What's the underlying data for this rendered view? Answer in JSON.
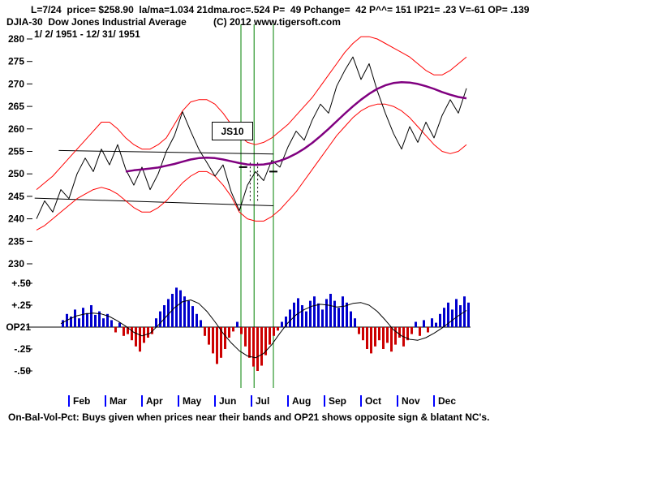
{
  "header": {
    "stats": "L=7/24  price= $258.90  la/ma=1.034 21dma.roc=.524 P=  49 Pchange=  42 P^^= 151 IP21= .23 V=-61 OP= .139",
    "title": "DJIA-30  Dow Jones Industrial Average",
    "copyright": "(C) 2012 www.tigersoft.com",
    "date_range": "1/ 2/ 1951 - 12/ 31/ 1951"
  },
  "footer_note": "On-Bal-Vol-Pct: Buys given when prices near their bands and OP21 shows opposite sign & blatant NC's.",
  "chart_data": {
    "type": "line",
    "title": "DJIA-30 Dow Jones Industrial Average",
    "date_range": "1/ 2/ 1951 - 12/ 31/ 1951",
    "x_months": [
      "Feb",
      "Mar",
      "Apr",
      "May",
      "Jun",
      "Jul",
      "Aug",
      "Sep",
      "Oct",
      "Nov",
      "Dec"
    ],
    "month_tick_color": "#0000ff",
    "price_panel": {
      "ylim": [
        229,
        281.5
      ],
      "yticks": [
        280,
        275,
        270,
        265,
        260,
        255,
        250,
        245,
        240,
        235,
        230
      ],
      "signal_vline_color": "#008000",
      "signal_vlines": [
        0.476,
        0.506,
        0.55
      ],
      "dashed_vlines": [
        {
          "x": 0.497,
          "y1": 252.5,
          "y2": 243.5
        },
        {
          "x": 0.514,
          "y1": 252.5,
          "y2": 243.5
        }
      ],
      "price_marks": [
        {
          "x": 0.481,
          "y": 251.5
        },
        {
          "x": 0.55,
          "y": 250.5
        }
      ],
      "trendlines": [
        {
          "x1": 0.06,
          "y1": 255.2,
          "x2": 0.55,
          "y2": 254.4
        },
        {
          "x1": 0.005,
          "y1": 244.6,
          "x2": 0.55,
          "y2": 242.9
        }
      ],
      "annotation": {
        "label": "JS10",
        "x": 0.41,
        "price": 259.8
      },
      "series": [
        {
          "name": "close",
          "color": "#000000",
          "width": 1,
          "values": [
            240,
            244,
            241.5,
            246.5,
            244.5,
            250,
            253.5,
            250.5,
            255.5,
            252,
            256.5,
            251,
            247.5,
            251.5,
            246.5,
            250,
            255,
            258.5,
            263.8,
            259.5,
            255.5,
            252.5,
            249.5,
            252,
            246,
            241.8,
            247.5,
            250.5,
            248.5,
            253,
            251.5,
            256,
            259.5,
            257.5,
            262,
            265.5,
            263.5,
            269.5,
            273,
            276,
            271,
            274.5,
            268.5,
            263.5,
            259,
            255.5,
            260.5,
            257,
            261.5,
            258,
            263,
            266.5,
            263.5,
            269
          ]
        },
        {
          "name": "upper_band",
          "color": "#ff0000",
          "width": 1,
          "values": [
            246.5,
            248,
            249.5,
            251.5,
            253.5,
            255.5,
            257.5,
            259.5,
            261.5,
            261.5,
            260,
            258,
            256.5,
            255.5,
            255.5,
            256.5,
            258,
            261,
            264,
            266,
            266.5,
            266.5,
            265.5,
            263.5,
            261,
            258.5,
            257,
            256.5,
            257,
            258,
            259.5,
            261,
            263,
            265,
            267,
            269.5,
            272,
            274.5,
            277,
            279,
            280.5,
            280.5,
            280,
            279,
            278,
            277,
            276,
            274.5,
            273,
            272,
            272,
            273,
            274.5,
            276
          ]
        },
        {
          "name": "lower_band",
          "color": "#ff0000",
          "width": 1,
          "values": [
            237.5,
            238.5,
            240,
            241.5,
            243,
            244.5,
            245.5,
            246.5,
            247,
            246.5,
            245.5,
            244,
            242.5,
            241.5,
            241.5,
            242.5,
            244,
            246,
            248,
            249.5,
            250.5,
            250.5,
            249.5,
            247.5,
            245,
            241.5,
            240,
            239.5,
            239.5,
            240.5,
            242,
            244,
            246,
            248.5,
            251,
            253.5,
            256,
            258.5,
            260.5,
            262.5,
            264,
            265,
            265.5,
            265.5,
            265,
            264,
            262.5,
            260.5,
            258.5,
            256.5,
            255,
            254.5,
            255,
            256.5
          ]
        },
        {
          "name": "ma_21day",
          "color": "#800080",
          "width": 2.5,
          "values": [
            null,
            null,
            null,
            null,
            null,
            null,
            null,
            null,
            null,
            null,
            null,
            250.5,
            250.8,
            251,
            251.2,
            251.4,
            251.8,
            252.2,
            252.7,
            253.2,
            253.5,
            253.6,
            253.5,
            253.2,
            252.8,
            252.4,
            252.1,
            252,
            252.1,
            252.4,
            252.9,
            253.6,
            254.5,
            255.6,
            256.9,
            258.4,
            260,
            261.7,
            263.4,
            265,
            266.5,
            267.8,
            268.9,
            269.7,
            270.2,
            270.4,
            270.3,
            270,
            269.5,
            268.9,
            268.2,
            267.6,
            267.1,
            266.8
          ]
        }
      ]
    },
    "indicator_panel": {
      "name": "On-Bal-Vol-Pct (OP21)",
      "ylim": [
        -0.55,
        0.55
      ],
      "ytick_labels": [
        "+.50",
        "+.25",
        "OP21",
        "-.25",
        "-.50"
      ],
      "ytick_values": [
        0.5,
        0.25,
        0,
        -0.25,
        -0.5
      ],
      "bar_colors": {
        "positive": "#0000cc",
        "negative": "#cc0000"
      },
      "bars": [
        0,
        0,
        0,
        0,
        0,
        0,
        0,
        0.08,
        0.15,
        0.12,
        0.2,
        0.1,
        0.22,
        0.16,
        0.25,
        0.14,
        0.18,
        0.1,
        0.15,
        0.08,
        -0.06,
        0.05,
        -0.1,
        -0.08,
        -0.15,
        -0.22,
        -0.28,
        -0.18,
        -0.12,
        -0.08,
        0.1,
        0.18,
        0.25,
        0.32,
        0.38,
        0.45,
        0.42,
        0.35,
        0.3,
        0.24,
        0.15,
        0.08,
        -0.1,
        -0.2,
        -0.3,
        -0.42,
        -0.35,
        -0.25,
        -0.12,
        -0.05,
        0.06,
        -0.08,
        -0.22,
        -0.35,
        -0.45,
        -0.5,
        -0.44,
        -0.32,
        -0.2,
        -0.1,
        -0.04,
        0.06,
        0.12,
        0.2,
        0.28,
        0.33,
        0.25,
        0.18,
        0.3,
        0.35,
        0.27,
        0.2,
        0.32,
        0.38,
        0.3,
        0.22,
        0.35,
        0.28,
        0.18,
        0.1,
        -0.08,
        -0.15,
        -0.25,
        -0.3,
        -0.22,
        -0.15,
        -0.25,
        -0.18,
        -0.28,
        -0.2,
        -0.12,
        -0.22,
        -0.15,
        -0.08,
        0.06,
        -0.1,
        0.08,
        -0.06,
        0.1,
        0.05,
        0.15,
        0.22,
        0.28,
        0.2,
        0.32,
        0.25,
        0.35,
        0.28
      ],
      "signal_line": {
        "color": "#000000",
        "values": [
          null,
          null,
          null,
          0.04,
          0.09,
          0.13,
          0.15,
          0.16,
          0.15,
          0.12,
          0.07,
          0.01,
          -0.06,
          -0.1,
          -0.07,
          0.02,
          0.12,
          0.22,
          0.29,
          0.31,
          0.27,
          0.18,
          0.06,
          -0.07,
          -0.18,
          -0.27,
          -0.33,
          -0.35,
          -0.3,
          -0.2,
          -0.07,
          0.05,
          0.14,
          0.2,
          0.24,
          0.26,
          0.25,
          0.23,
          0.24,
          0.27,
          0.28,
          0.25,
          0.18,
          0.08,
          -0.03,
          -0.1,
          -0.14,
          -0.15,
          -0.12,
          -0.07,
          -0.01,
          0.06,
          0.13,
          0.19
        ]
      }
    }
  }
}
